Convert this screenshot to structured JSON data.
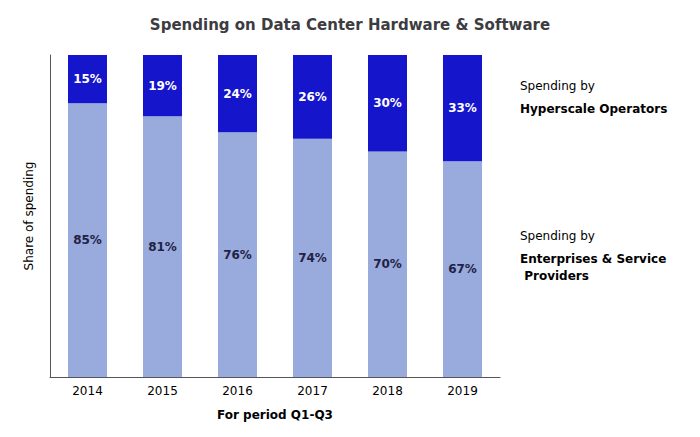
{
  "chart_data": {
    "type": "bar",
    "title": "Spending on Data Center Hardware & Software",
    "xlabel": "For period Q1-Q3",
    "ylabel": "Share of spending",
    "categories": [
      "2014",
      "2015",
      "2016",
      "2017",
      "2018",
      "2019"
    ],
    "stacked": true,
    "series": [
      {
        "name": "Enterprises & Service Providers",
        "color": "#99aadd",
        "values": [
          85,
          81,
          76,
          74,
          70,
          67
        ],
        "value_labels": [
          "85%",
          "81%",
          "76%",
          "74%",
          "70%",
          "67%"
        ]
      },
      {
        "name": "Hyperscale Operators",
        "color": "#1515cc",
        "values": [
          15,
          19,
          24,
          26,
          30,
          33
        ],
        "value_labels": [
          "15%",
          "19%",
          "24%",
          "26%",
          "30%",
          "33%"
        ]
      }
    ],
    "annotations": [
      "Spending by",
      "Spending by"
    ],
    "data_labels": true,
    "ylim": [
      0,
      100
    ],
    "yticks": [],
    "tick_labels": "x",
    "grid": false,
    "legend": false
  }
}
